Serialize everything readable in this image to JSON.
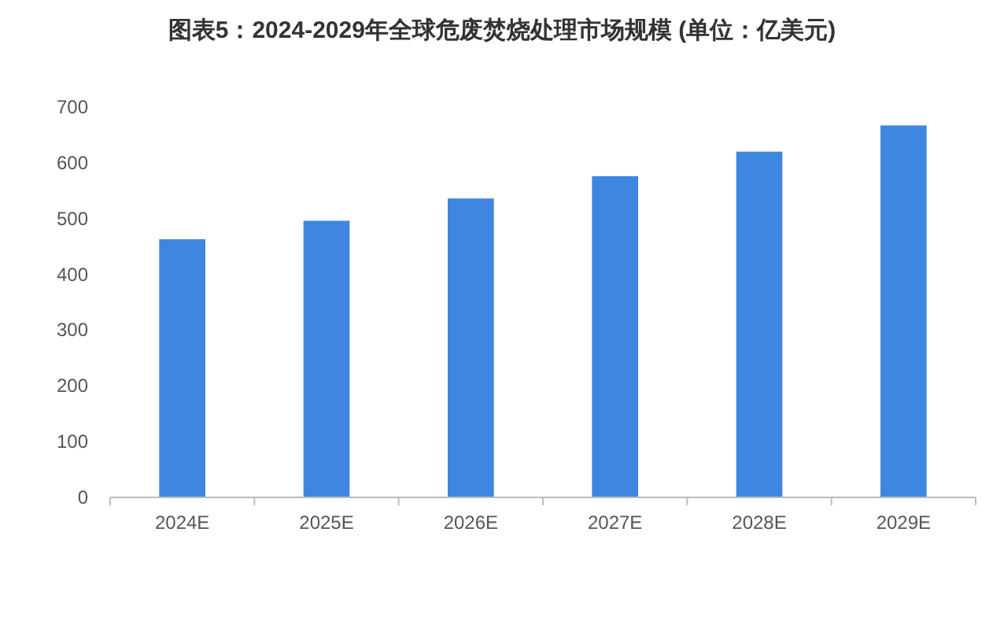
{
  "chart_data": {
    "type": "bar",
    "title": "图表5：2024-2029年全球危废焚烧处理市场规模 (单位：亿美元)",
    "categories": [
      "2024E",
      "2025E",
      "2026E",
      "2027E",
      "2028E",
      "2029E"
    ],
    "values": [
      463,
      496,
      536,
      576,
      620,
      667
    ],
    "color": "#3f86e0",
    "ylim": [
      0,
      700
    ],
    "yticks": [
      0,
      100,
      200,
      300,
      400,
      500,
      600,
      700
    ],
    "grid": false
  }
}
